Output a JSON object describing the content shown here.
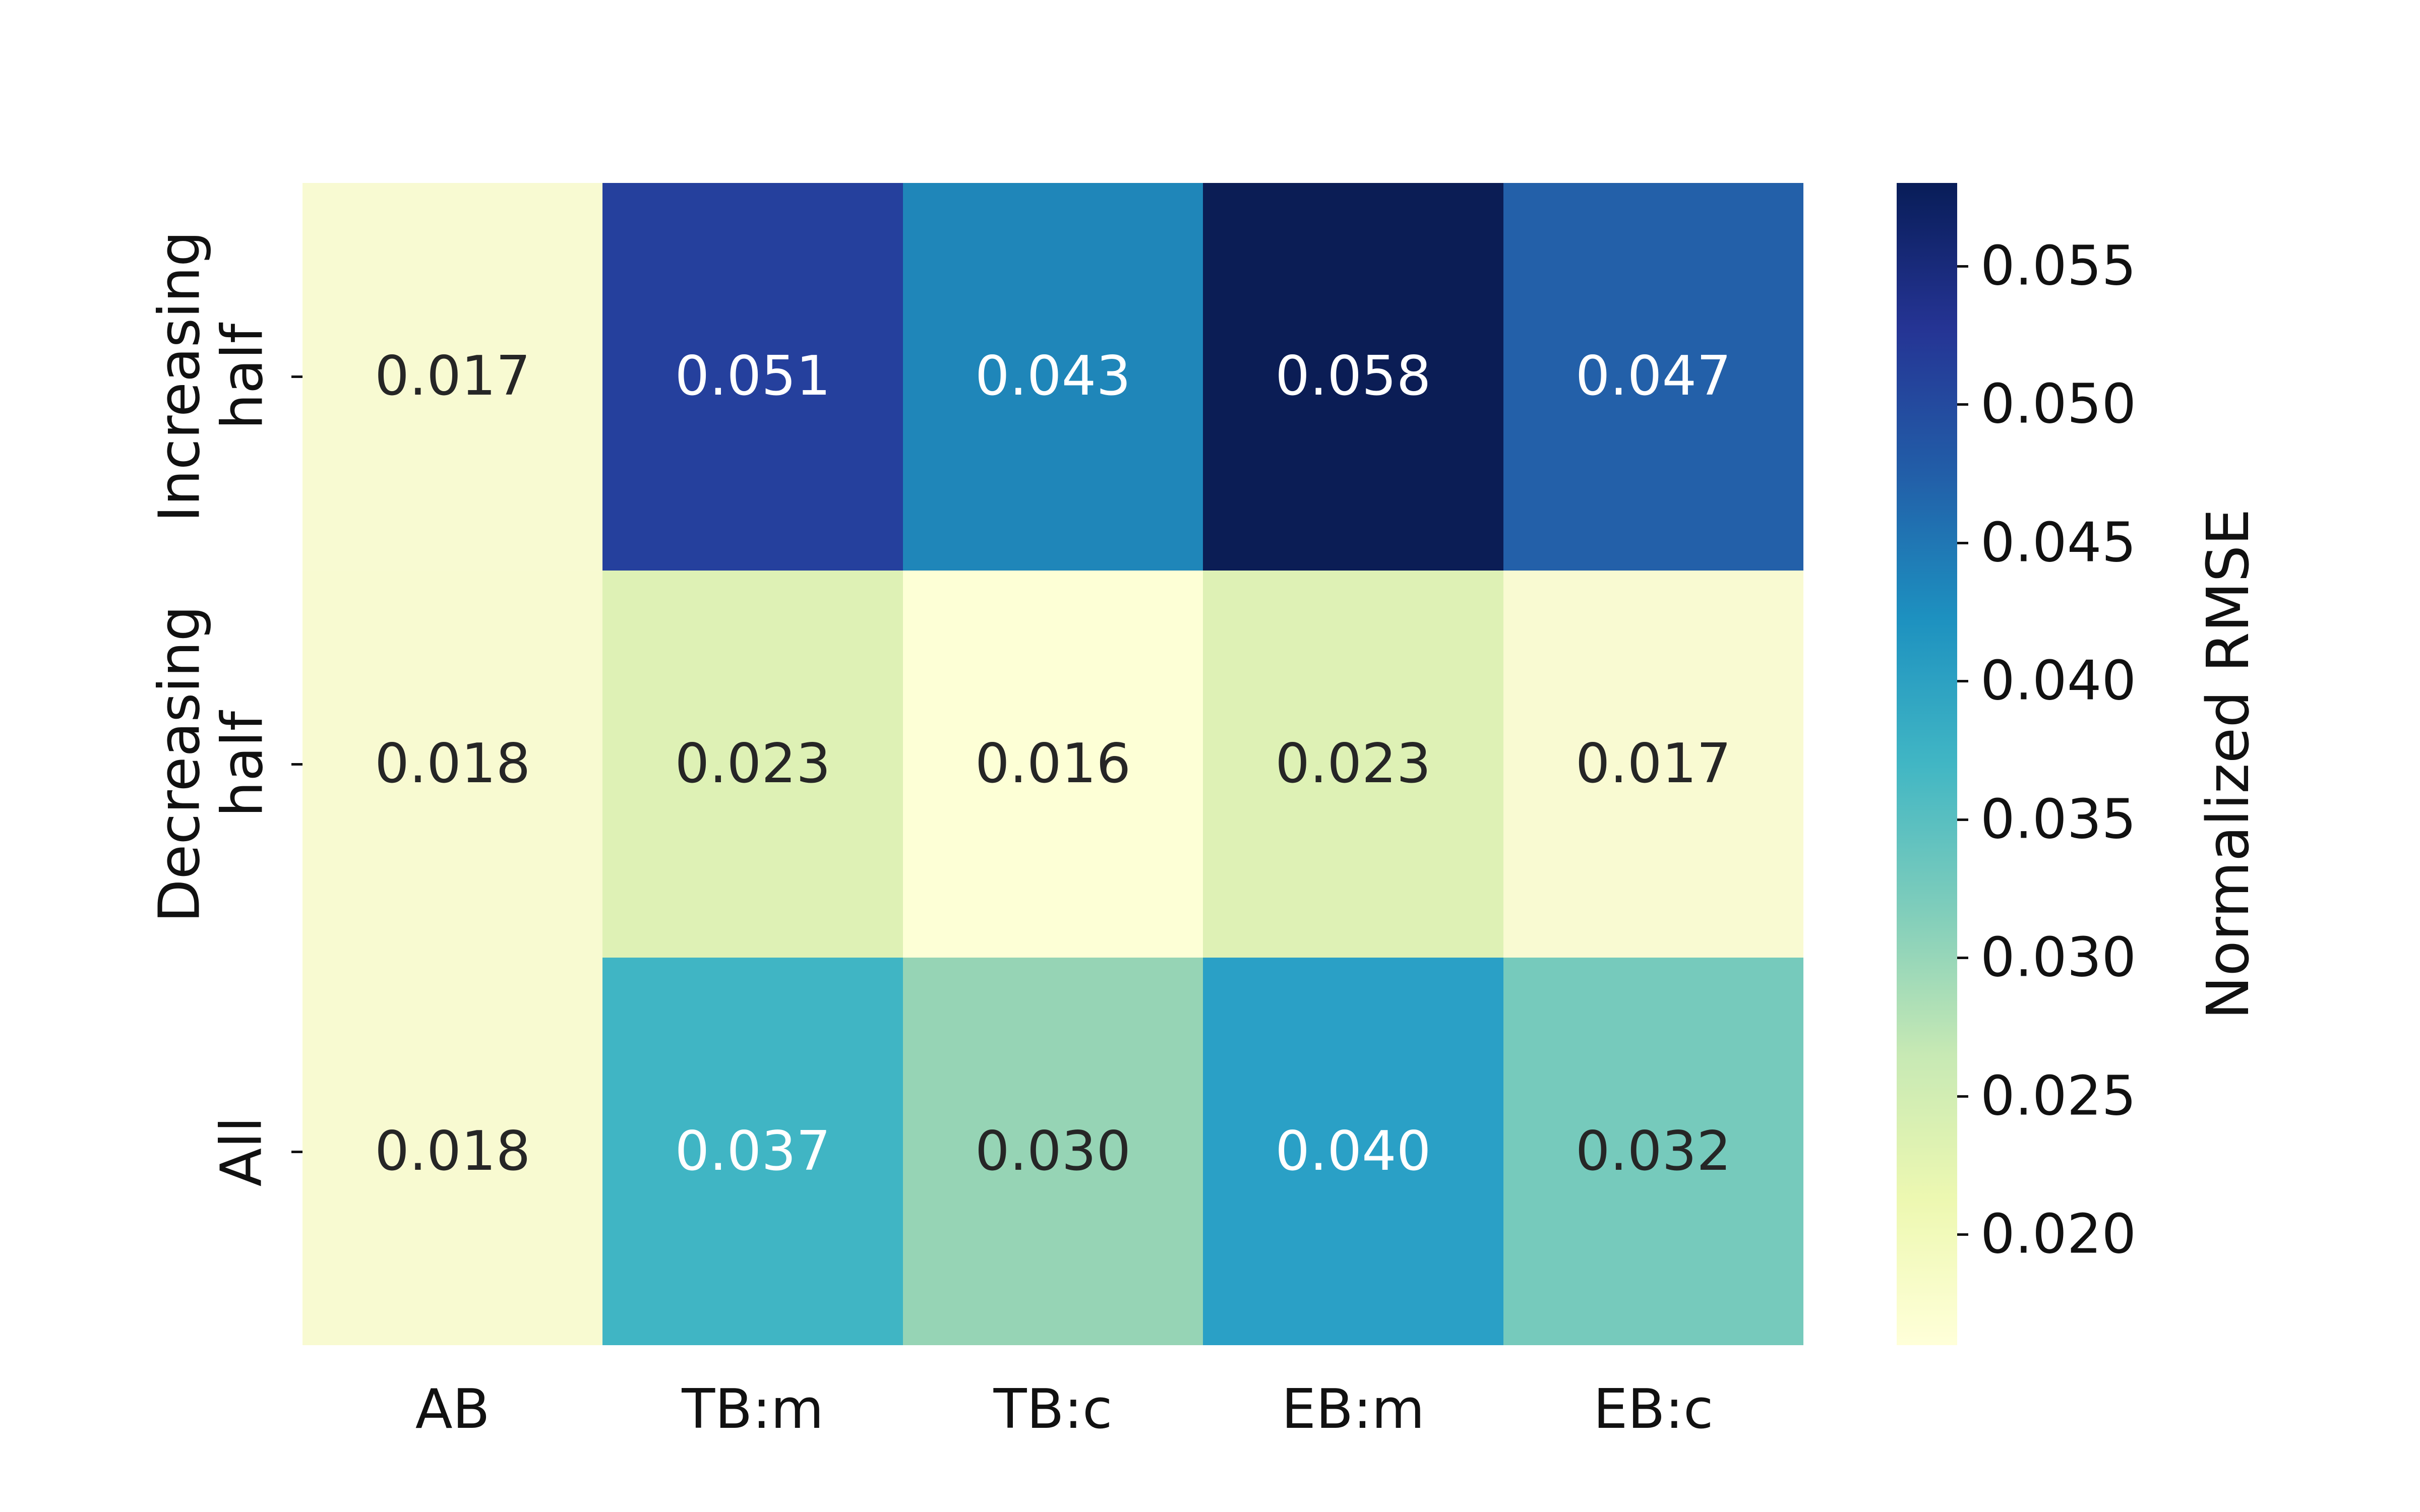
{
  "figure": {
    "background": "#ffffff"
  },
  "chart_data": {
    "type": "heatmap",
    "title": "",
    "x_tick_labels": [
      "AB",
      "TB:m",
      "TB:c",
      "EB:m",
      "EB:c"
    ],
    "y_tick_labels": [
      "Increasing\nhalf",
      "Decreasing\nhalf",
      "All"
    ],
    "values": [
      [
        0.017,
        0.051,
        0.043,
        0.058,
        0.047
      ],
      [
        0.018,
        0.023,
        0.016,
        0.023,
        0.017
      ],
      [
        0.018,
        0.037,
        0.03,
        0.04,
        0.032
      ]
    ],
    "cell_labels": [
      [
        "0.017",
        "0.051",
        "0.043",
        "0.058",
        "0.047"
      ],
      [
        "0.018",
        "0.023",
        "0.016",
        "0.023",
        "0.017"
      ],
      [
        "0.018",
        "0.037",
        "0.030",
        "0.040",
        "0.032"
      ]
    ],
    "cell_colors": [
      [
        "#f8fad2",
        "#25409d",
        "#1f86b9",
        "#0b1d55",
        "#2360a9"
      ],
      [
        "#f8fad1",
        "#def1b5",
        "#fdffd6",
        "#def1b5",
        "#f9fad2"
      ],
      [
        "#f8fad1",
        "#40b5c4",
        "#96d4b5",
        "#2aa0c6",
        "#76cabc"
      ]
    ],
    "cell_text_colors": [
      [
        "#262626",
        "#ffffff",
        "#ffffff",
        "#ffffff",
        "#ffffff"
      ],
      [
        "#262626",
        "#262626",
        "#262626",
        "#262626",
        "#262626"
      ],
      [
        "#262626",
        "#ffffff",
        "#262626",
        "#ffffff",
        "#262626"
      ]
    ],
    "colorbar": {
      "label": "Normalized RMSE",
      "vmin": 0.016,
      "vmax": 0.058,
      "tick_labels": [
        "0.020",
        "0.025",
        "0.030",
        "0.035",
        "0.040",
        "0.045",
        "0.050",
        "0.055"
      ],
      "tick_values": [
        0.02,
        0.025,
        0.03,
        0.035,
        0.04,
        0.045,
        0.05,
        0.055
      ],
      "colormap_stops": [
        [
          0.0,
          "#ffffd9"
        ],
        [
          0.125,
          "#edf8b1"
        ],
        [
          0.25,
          "#c7e9b4"
        ],
        [
          0.375,
          "#7fcdbb"
        ],
        [
          0.5,
          "#41b6c4"
        ],
        [
          0.625,
          "#1d91c0"
        ],
        [
          0.75,
          "#225ea8"
        ],
        [
          0.875,
          "#253494"
        ],
        [
          1.0,
          "#081d58"
        ]
      ]
    },
    "layout_hints": {
      "legend_position": "right-colorbar",
      "grid": false
    }
  }
}
